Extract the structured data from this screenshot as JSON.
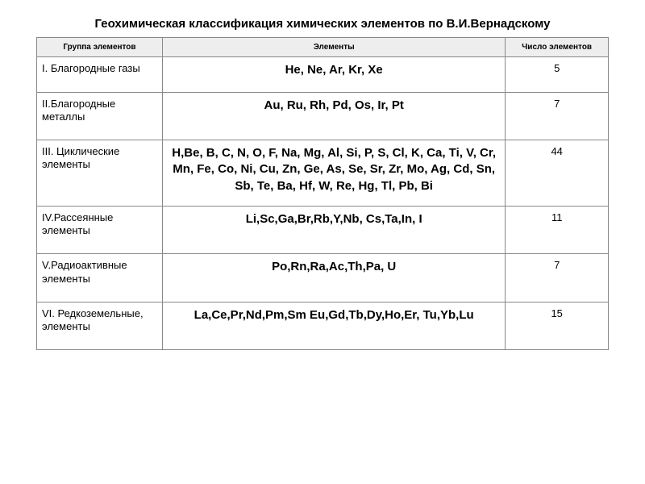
{
  "title": "Геохимическая классификация химических элементов по В.И.Вернадскому",
  "table": {
    "type": "table",
    "background_color": "#ffffff",
    "border_color": "#888888",
    "header_bg": "#eeeeee",
    "text_color": "#000000",
    "title_fontsize": 15,
    "header_fontsize": 10,
    "group_fontsize": 13,
    "elements_fontsize": 15,
    "count_fontsize": 13,
    "columns": {
      "group": "Группа элементов",
      "elements": "Элементы",
      "count": "Число элементов"
    },
    "rows": [
      {
        "group": "I. Благородные газы",
        "elements": "He, Ne, Ar, Kr, Xe",
        "count": "5"
      },
      {
        "group": "II.Благородные металлы",
        "elements": "Au, Ru, Rh, Pd, Os, Ir, Pt",
        "count": "7"
      },
      {
        "group": "III. Циклические элементы",
        "elements": "H,Be, B, C, N, O, F, Na, Mg, Al, Si, P, S, Cl, K, Ca, Ti, V, Cr, Mn, Fe, Co, Ni, Cu, Zn, Ge, As, Se, Sr, Zr, Mo, Ag, Cd, Sn, Sb, Te, Ba, Hf, W, Re, Hg, Tl, Pb, Bi",
        "count": "44"
      },
      {
        "group": "IV.Рассеянные элементы",
        "elements": "Li,Sc,Ga,Br,Rb,Y,Nb, Cs,Ta,In, I",
        "count": "11"
      },
      {
        "group": "V.Радиоактивные элементы",
        "elements": "Po,Rn,Ra,Ac,Th,Pa, U",
        "count": "7"
      },
      {
        "group": "VI. Редкоземельные, элементы",
        "elements": "La,Ce,Pr,Nd,Pm,Sm Eu,Gd,Tb,Dy,Ho,Er, Tu,Yb,Lu",
        "count": "15"
      }
    ]
  }
}
